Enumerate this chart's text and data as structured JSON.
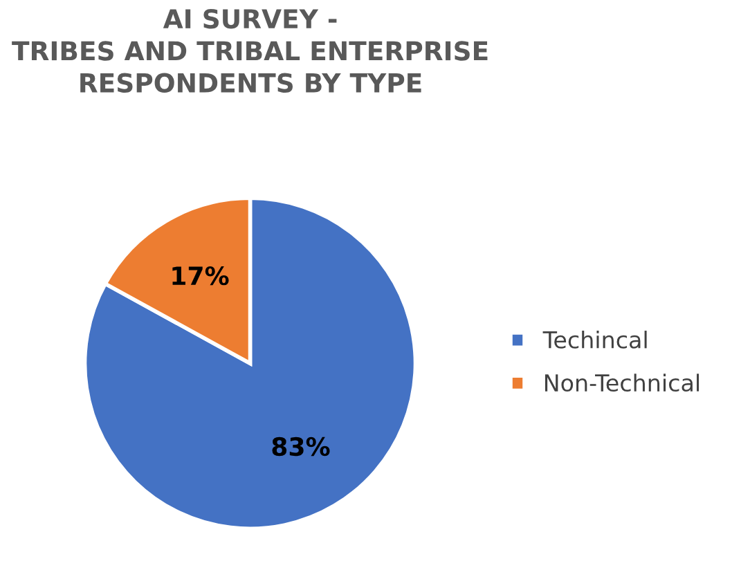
{
  "chart_data": {
    "type": "pie",
    "title": "AI SURVEY -\nTRIBES AND TRIBAL ENTERPRISE\nRESPONDENTS BY TYPE",
    "categories": [
      "Techincal",
      "Non-Technical"
    ],
    "values": [
      83,
      17
    ],
    "colors": [
      "#4472c4",
      "#ed7d31"
    ],
    "value_labels": [
      "83%",
      "17%"
    ],
    "legend": "right"
  }
}
